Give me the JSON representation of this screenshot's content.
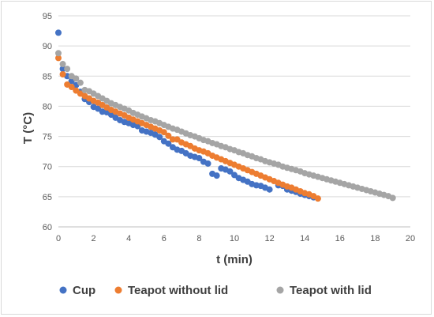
{
  "chart_data": {
    "type": "scatter",
    "xlabel": "t (min)",
    "ylabel": "T (°C)",
    "xlim": [
      0,
      20
    ],
    "ylim": [
      60,
      95
    ],
    "xticks": [
      "0",
      "2",
      "4",
      "6",
      "8",
      "10",
      "12",
      "14",
      "16",
      "18",
      "20"
    ],
    "yticks": [
      "60",
      "65",
      "70",
      "75",
      "80",
      "85",
      "90",
      "95"
    ],
    "grid": "horizontal",
    "legend_position": "bottom",
    "series": [
      {
        "name": "Cup",
        "color": "#4472c4",
        "points": [
          [
            0.0,
            92.2
          ],
          [
            0.25,
            86.2
          ],
          [
            0.5,
            85.0
          ],
          [
            0.75,
            84.2
          ],
          [
            1.0,
            83.5
          ],
          [
            1.25,
            82.4
          ],
          [
            1.5,
            81.2
          ],
          [
            1.75,
            80.7
          ],
          [
            2.0,
            79.9
          ],
          [
            2.25,
            79.6
          ],
          [
            2.5,
            79.1
          ],
          [
            2.75,
            79.0
          ],
          [
            3.0,
            78.6
          ],
          [
            3.25,
            78.1
          ],
          [
            3.5,
            77.7
          ],
          [
            3.75,
            77.4
          ],
          [
            4.0,
            77.2
          ],
          [
            4.25,
            76.9
          ],
          [
            4.5,
            76.7
          ],
          [
            4.75,
            76.0
          ],
          [
            5.0,
            75.8
          ],
          [
            5.25,
            75.6
          ],
          [
            5.5,
            75.3
          ],
          [
            5.75,
            74.9
          ],
          [
            6.0,
            74.2
          ],
          [
            6.25,
            73.8
          ],
          [
            6.5,
            73.2
          ],
          [
            6.75,
            72.8
          ],
          [
            7.0,
            72.6
          ],
          [
            7.25,
            72.2
          ],
          [
            7.5,
            71.8
          ],
          [
            7.75,
            71.6
          ],
          [
            8.0,
            71.4
          ],
          [
            8.25,
            70.8
          ],
          [
            8.5,
            70.5
          ],
          [
            8.75,
            68.8
          ],
          [
            9.0,
            68.5
          ],
          [
            9.25,
            69.7
          ],
          [
            9.5,
            69.5
          ],
          [
            9.75,
            69.2
          ],
          [
            10.0,
            68.6
          ],
          [
            10.25,
            68.1
          ],
          [
            10.5,
            67.8
          ],
          [
            10.75,
            67.5
          ],
          [
            11.0,
            67.1
          ],
          [
            11.25,
            66.9
          ],
          [
            11.5,
            66.8
          ],
          [
            11.75,
            66.5
          ],
          [
            12.0,
            66.2
          ],
          [
            12.5,
            66.9
          ],
          [
            12.75,
            66.8
          ],
          [
            13.0,
            66.2
          ],
          [
            13.25,
            66.0
          ],
          [
            13.5,
            65.8
          ],
          [
            13.75,
            65.5
          ],
          [
            14.0,
            65.3
          ],
          [
            14.25,
            65.1
          ],
          [
            14.5,
            64.9
          ]
        ]
      },
      {
        "name": "Teapot without lid",
        "color": "#ed7d31",
        "points": [
          [
            0.0,
            88.0
          ],
          [
            0.25,
            85.3
          ],
          [
            0.5,
            83.6
          ],
          [
            0.75,
            83.2
          ],
          [
            1.0,
            82.6
          ],
          [
            1.25,
            82.1
          ],
          [
            1.5,
            81.7
          ],
          [
            1.75,
            81.3
          ],
          [
            2.0,
            80.9
          ],
          [
            2.25,
            80.6
          ],
          [
            2.5,
            80.2
          ],
          [
            2.75,
            79.8
          ],
          [
            3.0,
            79.4
          ],
          [
            3.25,
            79.1
          ],
          [
            3.5,
            78.8
          ],
          [
            3.75,
            78.5
          ],
          [
            4.0,
            78.1
          ],
          [
            4.25,
            77.8
          ],
          [
            4.5,
            77.5
          ],
          [
            4.75,
            77.2
          ],
          [
            5.0,
            76.9
          ],
          [
            5.25,
            76.6
          ],
          [
            5.5,
            76.3
          ],
          [
            5.75,
            76.0
          ],
          [
            6.0,
            75.7
          ],
          [
            6.25,
            75.1
          ],
          [
            6.5,
            74.5
          ],
          [
            6.75,
            74.5
          ],
          [
            7.0,
            74.0
          ],
          [
            7.25,
            73.7
          ],
          [
            7.5,
            73.4
          ],
          [
            7.75,
            73.0
          ],
          [
            8.0,
            72.7
          ],
          [
            8.25,
            72.5
          ],
          [
            8.5,
            72.2
          ],
          [
            8.75,
            71.8
          ],
          [
            9.0,
            71.5
          ],
          [
            9.25,
            71.2
          ],
          [
            9.5,
            70.9
          ],
          [
            9.75,
            70.6
          ],
          [
            10.0,
            70.3
          ],
          [
            10.25,
            70.0
          ],
          [
            10.5,
            69.7
          ],
          [
            10.75,
            69.4
          ],
          [
            11.0,
            69.1
          ],
          [
            11.25,
            68.8
          ],
          [
            11.5,
            68.5
          ],
          [
            11.75,
            68.2
          ],
          [
            12.0,
            67.9
          ],
          [
            12.25,
            67.6
          ],
          [
            12.5,
            67.3
          ],
          [
            12.75,
            67.0
          ],
          [
            13.0,
            66.7
          ],
          [
            13.25,
            66.5
          ],
          [
            13.5,
            66.2
          ],
          [
            13.75,
            65.9
          ],
          [
            14.0,
            65.6
          ],
          [
            14.25,
            65.4
          ],
          [
            14.5,
            65.1
          ],
          [
            14.75,
            64.7
          ]
        ]
      },
      {
        "name": "Teapot with lid",
        "color": "#a5a5a5",
        "points": [
          [
            0.0,
            88.8
          ],
          [
            0.25,
            87.0
          ],
          [
            0.5,
            86.2
          ],
          [
            0.75,
            85.0
          ],
          [
            1.0,
            84.6
          ],
          [
            1.25,
            83.9
          ],
          [
            1.5,
            82.7
          ],
          [
            1.75,
            82.5
          ],
          [
            2.0,
            82.1
          ],
          [
            2.25,
            81.7
          ],
          [
            2.5,
            81.3
          ],
          [
            2.75,
            80.9
          ],
          [
            3.0,
            80.5
          ],
          [
            3.25,
            80.2
          ],
          [
            3.5,
            79.9
          ],
          [
            3.75,
            79.6
          ],
          [
            4.0,
            79.3
          ],
          [
            4.25,
            78.9
          ],
          [
            4.5,
            78.6
          ],
          [
            4.75,
            78.3
          ],
          [
            5.0,
            78.0
          ],
          [
            5.25,
            77.7
          ],
          [
            5.5,
            77.5
          ],
          [
            5.75,
            77.2
          ],
          [
            6.0,
            76.9
          ],
          [
            6.25,
            76.6
          ],
          [
            6.5,
            76.3
          ],
          [
            6.75,
            76.1
          ],
          [
            7.0,
            75.8
          ],
          [
            7.25,
            75.5
          ],
          [
            7.5,
            75.2
          ],
          [
            7.75,
            75.0
          ],
          [
            8.0,
            74.7
          ],
          [
            8.25,
            74.4
          ],
          [
            8.5,
            74.2
          ],
          [
            8.75,
            73.9
          ],
          [
            9.0,
            73.7
          ],
          [
            9.25,
            73.4
          ],
          [
            9.5,
            73.2
          ],
          [
            9.75,
            72.9
          ],
          [
            10.0,
            72.7
          ],
          [
            10.25,
            72.4
          ],
          [
            10.5,
            72.2
          ],
          [
            10.75,
            71.9
          ],
          [
            11.0,
            71.7
          ],
          [
            11.25,
            71.4
          ],
          [
            11.5,
            71.2
          ],
          [
            11.75,
            70.9
          ],
          [
            12.0,
            70.7
          ],
          [
            12.25,
            70.5
          ],
          [
            12.5,
            70.3
          ],
          [
            12.75,
            70.0
          ],
          [
            13.0,
            69.8
          ],
          [
            13.25,
            69.6
          ],
          [
            13.5,
            69.4
          ],
          [
            13.75,
            69.2
          ],
          [
            14.0,
            68.9
          ],
          [
            14.25,
            68.7
          ],
          [
            14.5,
            68.5
          ],
          [
            14.75,
            68.3
          ],
          [
            15.0,
            68.1
          ],
          [
            15.25,
            67.9
          ],
          [
            15.5,
            67.7
          ],
          [
            15.75,
            67.5
          ],
          [
            16.0,
            67.3
          ],
          [
            16.25,
            67.1
          ],
          [
            16.5,
            66.9
          ],
          [
            16.75,
            66.7
          ],
          [
            17.0,
            66.5
          ],
          [
            17.25,
            66.3
          ],
          [
            17.5,
            66.1
          ],
          [
            17.75,
            65.9
          ],
          [
            18.0,
            65.7
          ],
          [
            18.25,
            65.5
          ],
          [
            18.5,
            65.3
          ],
          [
            18.75,
            65.1
          ],
          [
            19.0,
            64.8
          ]
        ]
      }
    ]
  }
}
